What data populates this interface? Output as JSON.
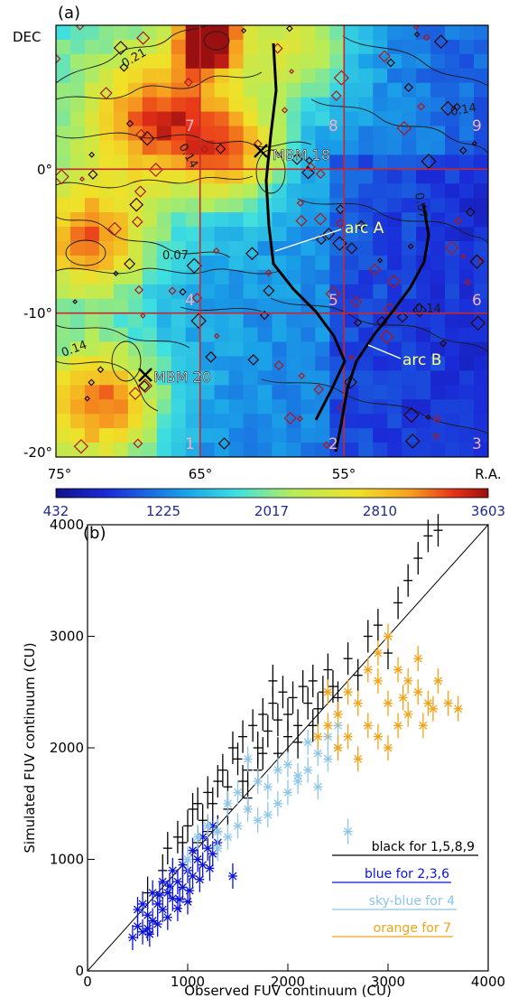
{
  "panel_a": {
    "label": "(a)",
    "dec_label": "DEC",
    "ra_label": "R.A.",
    "x_ticks": [
      "75°",
      "65°",
      "55°"
    ],
    "y_ticks": [
      "0°",
      "-10°",
      "-20°"
    ],
    "region_numbers": [
      "1",
      "2",
      "3",
      "4",
      "5",
      "6",
      "7",
      "8",
      "9"
    ],
    "objects": [
      {
        "name": "MBM 18",
        "ra": 60.8,
        "dec": 1.2
      },
      {
        "name": "MBM 20",
        "ra": 68.9,
        "dec": -14.8
      }
    ],
    "arcs": [
      {
        "name": "arc A"
      },
      {
        "name": "arc B"
      }
    ],
    "contour_labels": [
      "0.21",
      "0.14",
      "0.14",
      "0.07",
      "0.07",
      "0.14",
      "0.14"
    ],
    "colorbar_ticks": [
      "432",
      "1225",
      "2017",
      "2810",
      "3603"
    ],
    "colors": {
      "grid": "#c8282d",
      "label_text": "#f6b0c0",
      "tick_text": "#202a8c",
      "arc_label": "#ffff80"
    }
  },
  "chart_data": [
    {
      "type": "heatmap",
      "panel": "(a)",
      "xlabel": "R.A.",
      "ylabel": "DEC",
      "xlim": [
        75,
        50
      ],
      "ylim": [
        -20,
        4
      ],
      "x_ticks": [
        75,
        65,
        55
      ],
      "y_ticks": [
        0,
        -10,
        -20
      ],
      "colorbar": {
        "min": 432,
        "max": 3603,
        "ticks": [
          432,
          1225,
          2017,
          2810,
          3603
        ]
      },
      "grid_lines_ra": [
        65,
        55
      ],
      "grid_lines_dec": [
        0,
        -10
      ],
      "regions": [
        {
          "id": "1",
          "ra": [
            75,
            65
          ],
          "dec": [
            -20,
            -10
          ]
        },
        {
          "id": "2",
          "ra": [
            65,
            55
          ],
          "dec": [
            -20,
            -10
          ]
        },
        {
          "id": "3",
          "ra": [
            55,
            45
          ],
          "dec": [
            -20,
            -10
          ]
        },
        {
          "id": "4",
          "ra": [
            75,
            65
          ],
          "dec": [
            -10,
            0
          ]
        },
        {
          "id": "5",
          "ra": [
            65,
            55
          ],
          "dec": [
            -10,
            0
          ]
        },
        {
          "id": "6",
          "ra": [
            55,
            45
          ],
          "dec": [
            -10,
            0
          ]
        },
        {
          "id": "7",
          "ra": [
            75,
            65
          ],
          "dec": [
            0,
            10
          ]
        },
        {
          "id": "8",
          "ra": [
            65,
            55
          ],
          "dec": [
            0,
            10
          ]
        },
        {
          "id": "9",
          "ra": [
            55,
            45
          ],
          "dec": [
            0,
            10
          ]
        }
      ]
    },
    {
      "type": "scatter",
      "panel": "(b)",
      "xlabel": "Observed FUV continuum (CU)",
      "ylabel": "Simulated FUV continuum (CU)",
      "xlim": [
        0,
        4000
      ],
      "ylim": [
        0,
        4000
      ],
      "x_ticks": [
        0,
        1000,
        2000,
        3000,
        4000
      ],
      "y_ticks": [
        0,
        1000,
        2000,
        3000,
        4000
      ],
      "reference_line": "y = x",
      "legend_position": "bottom-right",
      "series": [
        {
          "name": "black for 1,5,8,9",
          "color": "#000000",
          "marker": "+",
          "points": [
            [
              600,
              700
            ],
            [
              750,
              900
            ],
            [
              800,
              1100
            ],
            [
              900,
              1200
            ],
            [
              950,
              1000
            ],
            [
              1000,
              1300
            ],
            [
              1050,
              1450
            ],
            [
              1100,
              1500
            ],
            [
              1150,
              1350
            ],
            [
              1200,
              1600
            ],
            [
              1250,
              1500
            ],
            [
              1300,
              1700
            ],
            [
              1350,
              1800
            ],
            [
              1400,
              1650
            ],
            [
              1450,
              2000
            ],
            [
              1500,
              1900
            ],
            [
              1550,
              2100
            ],
            [
              1600,
              1800
            ],
            [
              1650,
              2200
            ],
            [
              1700,
              2000
            ],
            [
              1750,
              2300
            ],
            [
              1800,
              2150
            ],
            [
              1850,
              2400
            ],
            [
              1900,
              2250
            ],
            [
              1950,
              2500
            ],
            [
              2000,
              2300
            ],
            [
              2050,
              2450
            ],
            [
              2100,
              2200
            ],
            [
              2150,
              2550
            ],
            [
              2200,
              2400
            ],
            [
              2250,
              2600
            ],
            [
              2300,
              2350
            ],
            [
              2350,
              2500
            ],
            [
              2400,
              2700
            ],
            [
              2450,
              2550
            ],
            [
              2500,
              2450
            ],
            [
              2600,
              2800
            ],
            [
              2700,
              2650
            ],
            [
              2800,
              3000
            ],
            [
              2900,
              3100
            ],
            [
              3000,
              2850
            ],
            [
              3100,
              3300
            ],
            [
              3200,
              3500
            ],
            [
              3300,
              3700
            ],
            [
              3400,
              3900
            ],
            [
              3500,
              3950
            ],
            [
              1200,
              1250
            ],
            [
              1400,
              1450
            ],
            [
              1700,
              1800
            ],
            [
              2000,
              2100
            ],
            [
              1100,
              1150
            ],
            [
              1300,
              1250
            ],
            [
              1600,
              1550
            ],
            [
              1900,
              1950
            ],
            [
              2100,
              2050
            ],
            [
              1850,
              2600
            ],
            [
              2250,
              2200
            ],
            [
              1550,
              1700
            ],
            [
              1750,
              1950
            ],
            [
              950,
              1150
            ]
          ]
        },
        {
          "name": "blue for 2,3,6",
          "color": "#0b13d6",
          "marker": "*",
          "points": [
            [
              450,
              300
            ],
            [
              500,
              400
            ],
            [
              550,
              350
            ],
            [
              600,
              500
            ],
            [
              650,
              450
            ],
            [
              700,
              600
            ],
            [
              750,
              550
            ],
            [
              800,
              700
            ],
            [
              850,
              650
            ],
            [
              900,
              800
            ],
            [
              950,
              750
            ],
            [
              1000,
              900
            ],
            [
              1050,
              850
            ],
            [
              1100,
              1000
            ],
            [
              1150,
              950
            ],
            [
              1200,
              1100
            ],
            [
              1250,
              1050
            ],
            [
              1300,
              1150
            ],
            [
              1450,
              850
            ],
            [
              500,
              550
            ],
            [
              600,
              380
            ],
            [
              700,
              420
            ],
            [
              800,
              480
            ],
            [
              900,
              560
            ],
            [
              1000,
              620
            ],
            [
              650,
              700
            ],
            [
              750,
              800
            ],
            [
              850,
              900
            ],
            [
              950,
              950
            ],
            [
              1050,
              1080
            ],
            [
              1150,
              1200
            ],
            [
              1250,
              1300
            ],
            [
              550,
              600
            ],
            [
              620,
              330
            ],
            [
              720,
              680
            ],
            [
              820,
              760
            ],
            [
              920,
              640
            ],
            [
              1020,
              720
            ],
            [
              1120,
              820
            ],
            [
              1220,
              920
            ]
          ]
        },
        {
          "name": "sky-blue for 4",
          "color": "#8cc6e8",
          "marker": "*",
          "points": [
            [
              1000,
              1000
            ],
            [
              1100,
              1200
            ],
            [
              1200,
              1300
            ],
            [
              1300,
              1250
            ],
            [
              1400,
              1500
            ],
            [
              1500,
              1600
            ],
            [
              1600,
              1450
            ],
            [
              1700,
              1700
            ],
            [
              1800,
              1650
            ],
            [
              1900,
              1800
            ],
            [
              2000,
              1850
            ],
            [
              2100,
              1750
            ],
            [
              2200,
              2050
            ],
            [
              2300,
              1950
            ],
            [
              2400,
              2100
            ],
            [
              2500,
              2000
            ],
            [
              2600,
              1250
            ],
            [
              1800,
              1400
            ],
            [
              1900,
              1500
            ],
            [
              2000,
              1600
            ],
            [
              2100,
              1700
            ],
            [
              2200,
              1800
            ],
            [
              2300,
              1650
            ],
            [
              1600,
              1900
            ],
            [
              1700,
              1350
            ],
            [
              1500,
              1300
            ],
            [
              1400,
              1200
            ],
            [
              1300,
              1100
            ],
            [
              2400,
              1900
            ],
            [
              2500,
              2200
            ]
          ]
        },
        {
          "name": "orange for 7",
          "color": "#f4a215",
          "marker": "*",
          "points": [
            [
              2300,
              2100
            ],
            [
              2400,
              2200
            ],
            [
              2500,
              2300
            ],
            [
              2600,
              2100
            ],
            [
              2700,
              2400
            ],
            [
              2800,
              2200
            ],
            [
              2900,
              2600
            ],
            [
              3000,
              2400
            ],
            [
              3100,
              2700
            ],
            [
              3200,
              2300
            ],
            [
              3300,
              2500
            ],
            [
              3400,
              2400
            ],
            [
              3500,
              2600
            ],
            [
              3600,
              2400
            ],
            [
              3700,
              2350
            ],
            [
              2800,
              2700
            ],
            [
              2900,
              2100
            ],
            [
              3000,
              2000
            ],
            [
              3100,
              2200
            ],
            [
              3200,
              2600
            ],
            [
              2700,
              1900
            ],
            [
              2600,
              2500
            ],
            [
              2500,
              2000
            ],
            [
              2400,
              2500
            ],
            [
              3300,
              2800
            ],
            [
              3000,
              3000
            ],
            [
              2900,
              2850
            ],
            [
              3150,
              2450
            ],
            [
              3350,
              2200
            ],
            [
              3450,
              2350
            ]
          ]
        }
      ]
    }
  ]
}
